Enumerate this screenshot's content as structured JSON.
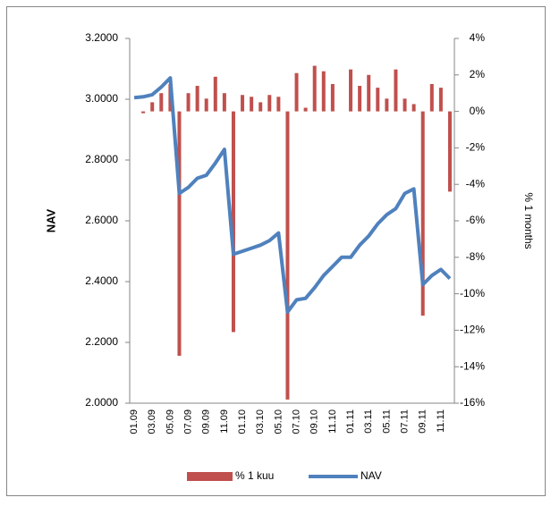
{
  "chart_data": {
    "type": "combo",
    "categories": [
      "01.09",
      null,
      "03.09",
      null,
      "05.09",
      null,
      "07.09",
      null,
      "09.09",
      null,
      "11.09",
      null,
      "01.10",
      null,
      "03.10",
      null,
      "05.10",
      null,
      "07.10",
      null,
      "09.10",
      null,
      "11.10",
      null,
      "01.11",
      null,
      "03.11",
      null,
      "05.11",
      null,
      "07.11",
      null,
      "09.11",
      null,
      "11.11",
      null
    ],
    "series": [
      {
        "name": "% 1 kuu",
        "type": "bar",
        "axis": "y2",
        "color": "#c0504d",
        "values": [
          0,
          -0.1,
          0.5,
          1.0,
          1.5,
          -13.4,
          1.0,
          1.4,
          0.7,
          1.9,
          1.0,
          -12.1,
          0.9,
          0.8,
          0.5,
          0.9,
          0.8,
          -15.8,
          2.1,
          0.2,
          2.5,
          2.2,
          1.5,
          0,
          2.3,
          1.4,
          2.0,
          1.3,
          0.7,
          2.3,
          0.7,
          0.4,
          -11.2,
          1.5,
          1.3,
          -4.4
        ]
      },
      {
        "name": "NAV",
        "type": "line",
        "color": "#4f81bd",
        "values": [
          3.005,
          3.008,
          3.015,
          3.04,
          3.07,
          2.69,
          2.71,
          2.74,
          2.75,
          2.79,
          2.835,
          2.49,
          2.5,
          2.51,
          2.52,
          2.535,
          2.56,
          2.3,
          2.34,
          2.345,
          2.38,
          2.42,
          2.45,
          2.48,
          2.48,
          2.52,
          2.55,
          2.59,
          2.62,
          2.64,
          2.69,
          2.705,
          2.39,
          2.42,
          2.44,
          2.41
        ]
      }
    ],
    "y_label": "NAV",
    "y2_label": "% 1 months",
    "ylim": [
      2.0,
      3.2
    ],
    "yticks": [
      {
        "value": 2.0,
        "label": "2.0000"
      },
      {
        "value": 2.2,
        "label": "2.2000"
      },
      {
        "value": 2.4,
        "label": "2.4000"
      },
      {
        "value": 2.6,
        "label": "2.6000"
      },
      {
        "value": 2.8,
        "label": "2.8000"
      },
      {
        "value": 3.0,
        "label": "3.0000"
      },
      {
        "value": 3.2,
        "label": "3.2000"
      }
    ],
    "y2lim": [
      -16,
      4
    ],
    "y2ticks": [
      {
        "value": -16,
        "label": "-16%"
      },
      {
        "value": -14,
        "label": "-14%"
      },
      {
        "value": -12,
        "label": "-12%"
      },
      {
        "value": -10,
        "label": "-10%"
      },
      {
        "value": -8,
        "label": "-8%"
      },
      {
        "value": -6,
        "label": "-6%"
      },
      {
        "value": -4,
        "label": "-4%"
      },
      {
        "value": -2,
        "label": "-2%"
      },
      {
        "value": 0,
        "label": "0%"
      },
      {
        "value": 2,
        "label": "2%"
      },
      {
        "value": 4,
        "label": "4%"
      }
    ],
    "grid": false,
    "legend": "bottom"
  }
}
